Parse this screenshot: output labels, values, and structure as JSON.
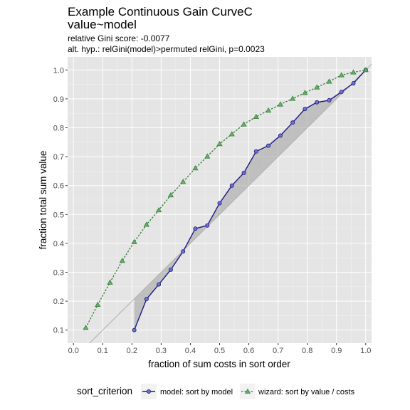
{
  "chart_data": {
    "type": "line",
    "title": "Example Continuous Gain CurveC",
    "title_line2": "value~model",
    "subtitle_line1": "relative Gini score: -0.0077",
    "subtitle_line2": "alt. hyp.: relGini(model)>permuted relGini, p=0.0023",
    "xlabel": "fraction of sum costs  in sort order",
    "ylabel": "fraction total sum value",
    "xlim": [
      0.0,
      1.0
    ],
    "ylim": [
      0.1,
      1.0
    ],
    "x_ticks": [
      "0.0",
      "0.1",
      "0.2",
      "0.3",
      "0.4",
      "0.5",
      "0.6",
      "0.7",
      "0.8",
      "0.9",
      "1.0"
    ],
    "y_ticks": [
      "0.1",
      "0.2",
      "0.3",
      "0.4",
      "0.5",
      "0.6",
      "0.7",
      "0.8",
      "0.9",
      "1.0"
    ],
    "grid": true,
    "background": "#e5e5e5",
    "legend": {
      "title": "sort_criterion",
      "position": "bottom",
      "entries": [
        "model: sort by model",
        "wizard: sort by  value / costs"
      ]
    },
    "series": [
      {
        "name": "model: sort by model",
        "color": "#1a1a80",
        "line_style": "solid",
        "marker": "circle",
        "x": [
          0.208,
          0.25,
          0.292,
          0.333,
          0.375,
          0.417,
          0.458,
          0.5,
          0.542,
          0.583,
          0.625,
          0.667,
          0.708,
          0.75,
          0.792,
          0.833,
          0.875,
          0.917,
          0.958,
          1.0
        ],
        "y": [
          0.1,
          0.207,
          0.258,
          0.309,
          0.372,
          0.451,
          0.462,
          0.539,
          0.6,
          0.644,
          0.718,
          0.738,
          0.773,
          0.818,
          0.865,
          0.888,
          0.895,
          0.924,
          0.954,
          1.0
        ]
      },
      {
        "name": "wizard: sort by  value / costs",
        "color": "#2e7d32",
        "line_style": "dashed",
        "marker": "triangle",
        "x": [
          0.042,
          0.083,
          0.125,
          0.167,
          0.208,
          0.25,
          0.292,
          0.333,
          0.375,
          0.417,
          0.458,
          0.5,
          0.542,
          0.583,
          0.625,
          0.667,
          0.708,
          0.75,
          0.792,
          0.833,
          0.875,
          0.917,
          0.958,
          1.0
        ],
        "y": [
          0.108,
          0.188,
          0.265,
          0.34,
          0.405,
          0.465,
          0.515,
          0.567,
          0.613,
          0.66,
          0.701,
          0.744,
          0.778,
          0.812,
          0.838,
          0.86,
          0.881,
          0.901,
          0.921,
          0.94,
          0.96,
          0.982,
          0.992,
          1.0
        ]
      }
    ],
    "reference_line": {
      "slope": 1,
      "intercept": 0,
      "color": "#b3b3b3"
    }
  }
}
